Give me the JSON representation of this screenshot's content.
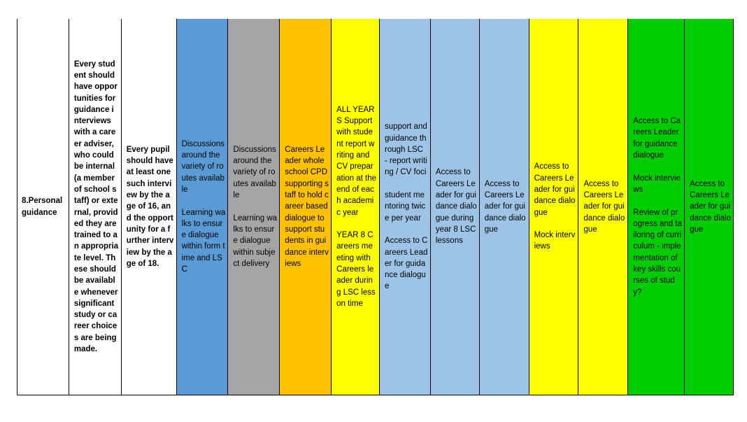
{
  "colors": {
    "white": "#ffffff",
    "blue": "#5b9bd5",
    "grey": "#a5a5a5",
    "orange": "#ffc000",
    "yellow": "#ffff00",
    "light_blue": "#9dc3e6",
    "green": "#00cc00"
  },
  "row": {
    "benchmark": "8.Personal guidance",
    "requirement": "Every student should have opportunities for guidance interviews with a career adviser, who could be internal (a member of school staff) or external, provided they are trained to an appropriate level. These should be available whenever significant study or career choices are being made.",
    "expectation": "Every pupil should have at least one such interview by the age of 16, and the opportunity for a further interview by the age of 18.",
    "cells": [
      {
        "color": "blue",
        "text": "Discussions around the variety of routes available\n\nLearning walks to ensure dialogue within form time and LSC"
      },
      {
        "color": "grey",
        "text": "Discussions around the variety of routes available\n\nLearning walks to ensure dialogue within subject delivery"
      },
      {
        "color": "orange",
        "text": "Careers Leader whole school CPD supporting staff to hold career based dialogue to support students in guidance interviews"
      },
      {
        "color": "yellow",
        "text": "ALL YEARS Support with student report writing and CV preparation at the end of each academic year\n\nYEAR 8 Careers meeting with Careers leader during LSC lesson time"
      },
      {
        "color": "light_blue",
        "text": "support and guidance through LSC - report writing / CV foci\n\nstudent mentoring twice per year\n\nAccess to Careers Leader for guidance dialogue"
      },
      {
        "color": "light_blue",
        "text": "Access to Careers Leader for guidance dialogue during year 8 LSC lessons"
      },
      {
        "color": "light_blue",
        "text": "Access to Careers Leader for guidance dialogue"
      },
      {
        "color": "yellow",
        "text": "Access to Careers Leader for guidance dialogue\n\nMock interviews"
      },
      {
        "color": "yellow",
        "text": "Access to Careers Leader for guidance dialogue"
      },
      {
        "color": "green",
        "text": "Access to Careers Leader for guidance dialogue\n\nMock interviews\n\nReview of progress and tailoring of curriculum - implementation of key skills courses of study?"
      },
      {
        "color": "green",
        "text": "Access to Careers Leader for guidance dialogue"
      }
    ]
  }
}
